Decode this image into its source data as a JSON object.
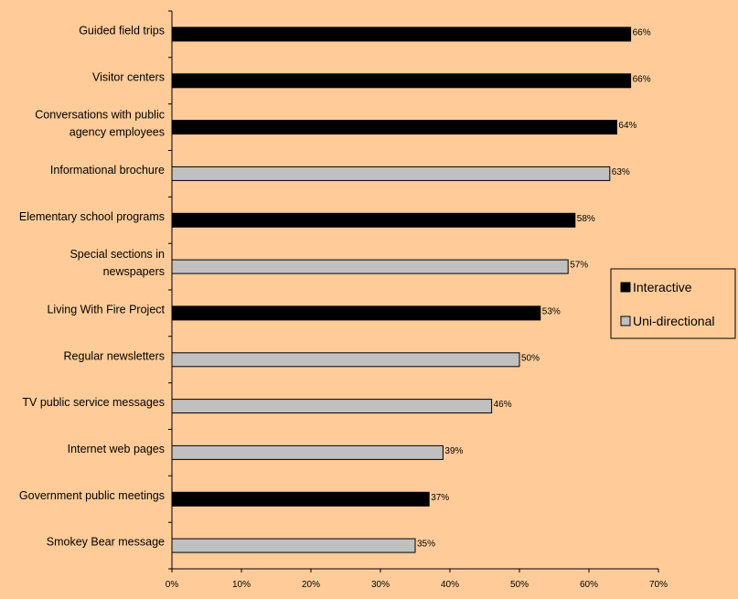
{
  "chart_data": {
    "type": "bar",
    "orientation": "horizontal",
    "title": "",
    "xlabel": "",
    "ylabel": "",
    "xlim": [
      0,
      70
    ],
    "x_ticks": [
      "0%",
      "10%",
      "20%",
      "30%",
      "40%",
      "50%",
      "60%",
      "70%"
    ],
    "grid": false,
    "legend_position": "right",
    "categories": [
      [
        "Guided field trips"
      ],
      [
        "Visitor centers"
      ],
      [
        "Conversations with public",
        "agency employees"
      ],
      [
        "Informational brochure"
      ],
      [
        "Elementary school programs"
      ],
      [
        "Special sections in",
        "newspapers"
      ],
      [
        "Living With Fire Project"
      ],
      [
        "Regular newsletters"
      ],
      [
        "TV public service messages"
      ],
      [
        "Internet web pages"
      ],
      [
        "Government public meetings"
      ],
      [
        "Smokey Bear message"
      ]
    ],
    "series": [
      {
        "name": "Interactive",
        "color": "#000000",
        "values": [
          66,
          66,
          64,
          null,
          58,
          null,
          53,
          null,
          null,
          null,
          37,
          null
        ],
        "labels": [
          "66%",
          "66%",
          "64%",
          "",
          "58%",
          "",
          "53%",
          "",
          "",
          "",
          "37%",
          ""
        ]
      },
      {
        "name": "Uni-directional",
        "color": "#C0C0C0",
        "values": [
          null,
          null,
          null,
          63,
          null,
          57,
          null,
          50,
          46,
          39,
          null,
          35
        ],
        "labels": [
          "",
          "",
          "",
          "63%",
          "",
          "57%",
          "",
          "50%",
          "46%",
          "39%",
          "",
          "35%"
        ]
      }
    ]
  }
}
